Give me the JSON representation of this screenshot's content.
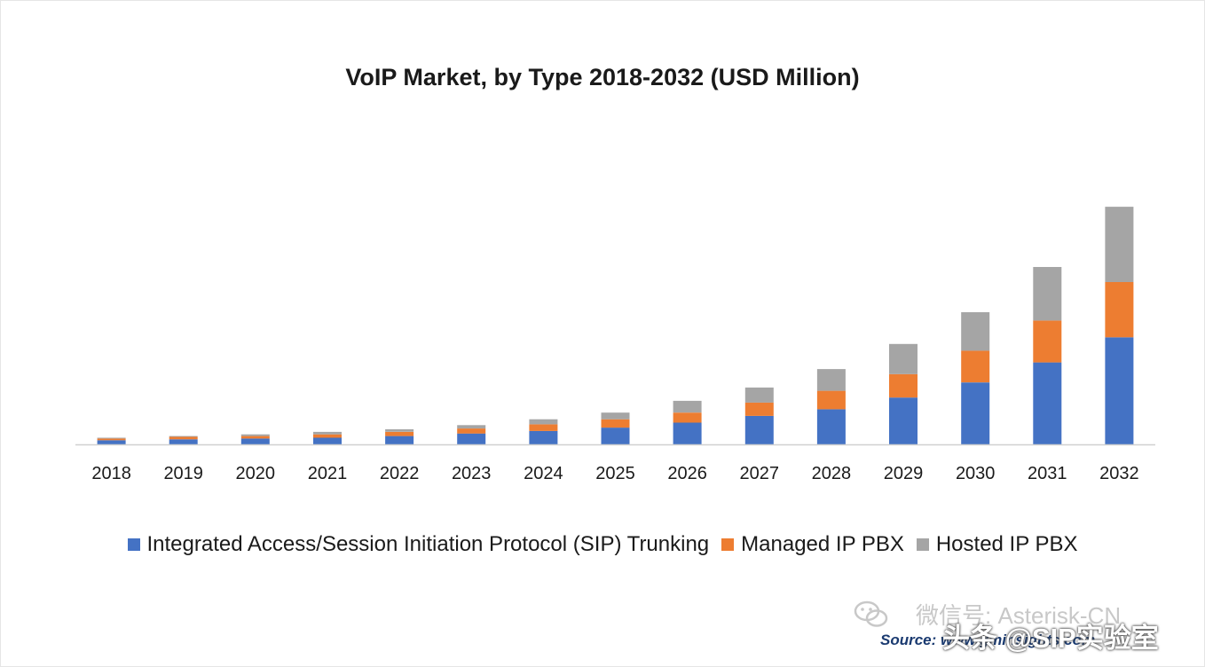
{
  "chart_data": {
    "type": "bar",
    "stacked": true,
    "title": "VoIP Market, by Type 2018-2032 (USD Million)",
    "categories": [
      "2018",
      "2019",
      "2020",
      "2021",
      "2022",
      "2023",
      "2024",
      "2025",
      "2026",
      "2027",
      "2028",
      "2029",
      "2030",
      "2031",
      "2032"
    ],
    "series": [
      {
        "name": "Integrated Access/Session Initiation Protocol (SIP) Trunking",
        "color": "#4472c4",
        "values": [
          5,
          6,
          7,
          8,
          10,
          13,
          16,
          20,
          26,
          34,
          42,
          56,
          74,
          98,
          128
        ]
      },
      {
        "name": "Managed IP PBX",
        "color": "#ed7d31",
        "values": [
          2,
          3,
          3,
          4,
          5,
          6,
          8,
          10,
          12,
          16,
          22,
          28,
          38,
          50,
          66
        ]
      },
      {
        "name": "Hosted IP PBX",
        "color": "#a5a5a5",
        "values": [
          1,
          1,
          2,
          3,
          3,
          4,
          6,
          8,
          14,
          18,
          26,
          36,
          46,
          64,
          90
        ]
      }
    ],
    "ylim": [
      0,
      300
    ],
    "xlabel": "",
    "ylabel": "",
    "grid": false,
    "legend_position": "bottom"
  },
  "source_text": "Source: www.gminsights.com",
  "watermark_top": "微信号: Asterisk-CN",
  "watermark_bottom": "头条 @SIP实验室",
  "watermark_icon": "wechat-icon"
}
